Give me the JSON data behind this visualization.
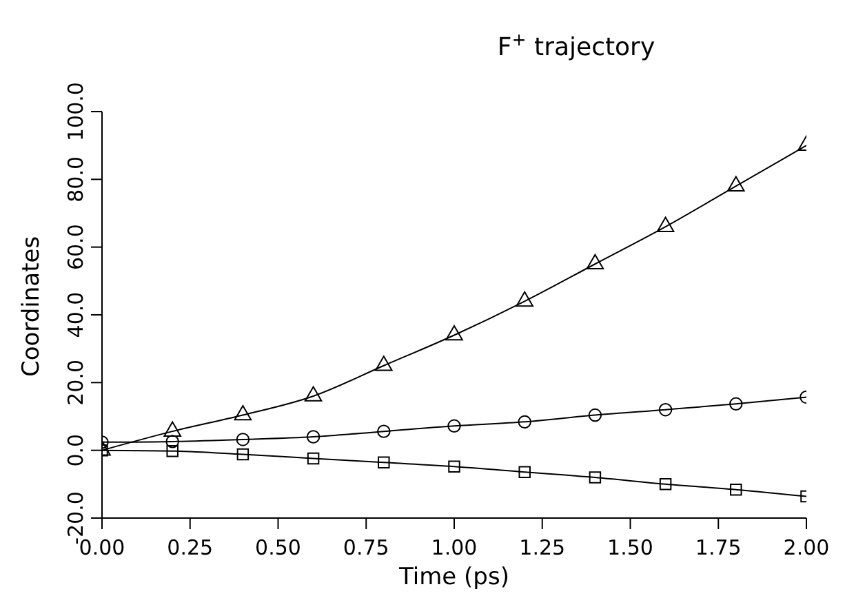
{
  "chart_data": {
    "type": "line",
    "title": "F$^{+}$ trajectory",
    "xlabel": "Time (ps)",
    "ylabel": "Coordinates",
    "x": [
      0,
      0.2,
      0.4,
      0.6,
      0.8,
      1.0,
      1.2,
      1.4,
      1.6,
      1.8,
      2.0
    ],
    "series": [
      {
        "color": "#000000",
        "marker": "circle",
        "values": [
          2.4,
          2.6,
          3.2,
          4,
          5.6,
          7.2,
          8.4,
          10.4,
          12,
          13.7,
          15.7
        ]
      },
      {
        "color": "#000000",
        "marker": "square",
        "values": [
          0,
          -0.2,
          -1.2,
          -2.4,
          -3.6,
          -4.8,
          -6.4,
          -8,
          -10,
          -11.6,
          -13.6
        ]
      },
      {
        "color": "#000000",
        "marker": "triangle",
        "values": [
          0,
          5.6,
          10.4,
          16,
          25,
          34,
          44,
          55,
          66,
          78,
          90
        ]
      }
    ],
    "xlim": [
      0,
      2
    ],
    "xticks": [
      {
        "value": 0,
        "label": "0.00"
      },
      {
        "value": 0.25,
        "label": "0.25"
      },
      {
        "value": 0.5,
        "label": "0.50"
      },
      {
        "value": 0.75,
        "label": "0.75"
      },
      {
        "value": 1,
        "label": "1.00"
      },
      {
        "value": 1.25,
        "label": "1.25"
      },
      {
        "value": 1.5,
        "label": "1.50"
      },
      {
        "value": 1.75,
        "label": "1.75"
      },
      {
        "value": 2,
        "label": "2.00"
      }
    ],
    "ylim": [
      -20,
      100
    ],
    "yticks": [
      {
        "value": -20,
        "label": "-20.0"
      },
      {
        "value": 0,
        "label": "0.0"
      },
      {
        "value": 20,
        "label": "20.0"
      },
      {
        "value": 40,
        "label": "40.0"
      },
      {
        "value": 60,
        "label": "60.0"
      },
      {
        "value": 80,
        "label": "80.0"
      },
      {
        "value": 100,
        "label": "100.0"
      }
    ],
    "grid": false,
    "legend": false,
    "line_style": "solid"
  }
}
